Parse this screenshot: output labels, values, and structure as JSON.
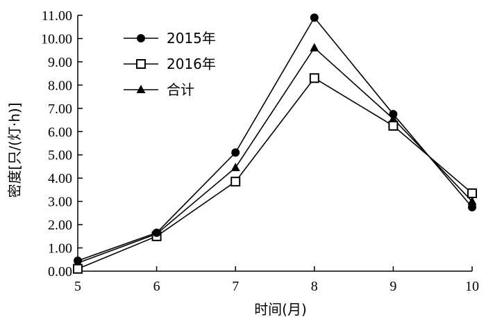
{
  "chart_data": {
    "type": "line",
    "title": "",
    "xlabel": "时间(月)",
    "ylabel": "密度[只/(灯·h)]",
    "x": [
      5,
      6,
      7,
      8,
      9,
      10
    ],
    "xlim": [
      5,
      10
    ],
    "ylim": [
      0,
      11
    ],
    "yticks": [
      "0.00",
      "1.00",
      "2.00",
      "3.00",
      "4.00",
      "5.00",
      "6.00",
      "7.00",
      "8.00",
      "9.00",
      "10.00",
      "11.00"
    ],
    "xticks": [
      "5",
      "6",
      "7",
      "8",
      "9",
      "10"
    ],
    "grid": false,
    "legend_position": "top-left",
    "series": [
      {
        "name": "2015年",
        "marker": "filled-circle",
        "color": "#000000",
        "values": [
          0.45,
          1.65,
          5.1,
          10.9,
          6.75,
          2.75
        ]
      },
      {
        "name": "2016年",
        "marker": "open-square",
        "color": "#000000",
        "values": [
          0.1,
          1.5,
          3.85,
          8.3,
          6.25,
          3.35
        ]
      },
      {
        "name": "合计",
        "marker": "filled-triangle",
        "color": "#000000",
        "values": [
          0.35,
          1.6,
          4.45,
          9.6,
          6.55,
          3.0
        ]
      }
    ]
  }
}
